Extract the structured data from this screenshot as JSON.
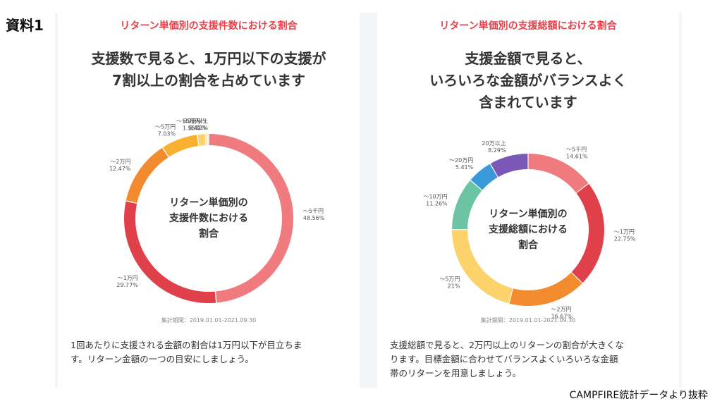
{
  "doc_label": "資料1",
  "footer_source": "CAMPFIRE統計データより抜粋",
  "chart_data": [
    {
      "type": "donut",
      "title": "リターン単価別の支援件数における割合",
      "headline": "支援数で見ると、1万円以下の支援が\n7割以上の割合を占めています",
      "center_label": [
        "リターン単価別の",
        "支援件数における",
        "割合"
      ],
      "period": "集計期間：2019.01.01-2021.09.30",
      "note": "1回あたりに支援される金額の割合は1万円以下が目立ちま\nす。リターン金額の一つの目安にしましょう。",
      "categories": [
        "〜5千円",
        "〜1万円",
        "〜2万円",
        "〜5万円",
        "〜10万円",
        "〜20万円",
        "20万以上"
      ],
      "values": [
        48.56,
        29.77,
        12.47,
        7.03,
        1.55,
        0.41,
        0.21
      ],
      "value_labels": [
        "48.56%",
        "29.77%",
        "12.47%",
        "7.03%",
        "1.55%",
        "0.41%",
        "0.21%"
      ],
      "colors": [
        "#ef7b7e",
        "#e04049",
        "#f28a2e",
        "#f7b02f",
        "#fdd26a",
        "#f6e38c",
        "#5fb89a"
      ]
    },
    {
      "type": "donut",
      "title": "リターン単価別の支援総額における割合",
      "headline": "支援金額で見ると、\nいろいろな金額がバランスよく\n含まれています",
      "center_label": [
        "リターン単価別の",
        "支援総額における",
        "割合"
      ],
      "period": "集計期間：2019.01.01-2021.09.30",
      "note": "支援総額で見ると、2万円以上のリターンの割合が大きくな\nります。目標金額に合わせてバランスよくいろいろな金額\n帯のリターンを用意しましょう。",
      "categories": [
        "〜5千円",
        "〜1万円",
        "〜2万円",
        "〜5万円",
        "〜10万円",
        "〜20万円",
        "20万以上"
      ],
      "values": [
        14.61,
        22.75,
        16.67,
        21,
        11.26,
        5.41,
        8.29
      ],
      "value_labels": [
        "14.61%",
        "22.75%",
        "16.67%",
        "21%",
        "11.26%",
        "5.41%",
        "8.29%"
      ],
      "colors": [
        "#ef7b7e",
        "#e04049",
        "#f28a2e",
        "#fdd26a",
        "#6cc4a4",
        "#3a9ad9",
        "#7b57b8"
      ]
    }
  ]
}
